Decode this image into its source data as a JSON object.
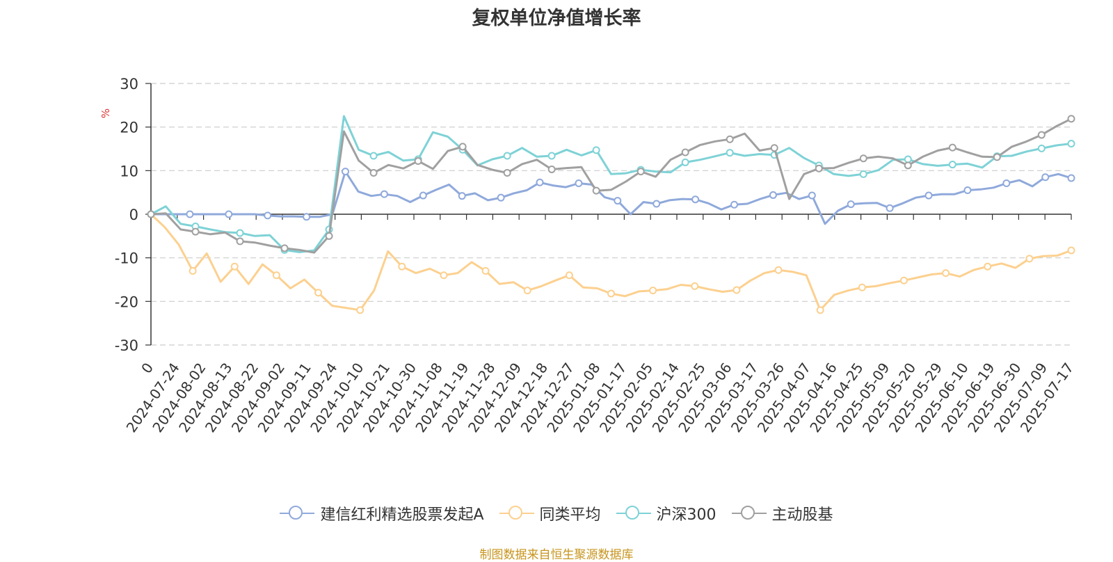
{
  "chart_data": {
    "type": "line",
    "title": "复权单位净值增长率",
    "ylabel": "%",
    "ylim": [
      -30,
      30
    ],
    "yticks": [
      -30,
      -20,
      -10,
      0,
      10,
      20,
      30
    ],
    "grid": true,
    "legend_position": "bottom",
    "source_note": "制图数据来自恒生聚源数据库",
    "x_tick_labels": [
      "0",
      "2024-07-24",
      "2024-08-02",
      "2024-08-13",
      "2024-08-22",
      "2024-09-02",
      "2024-09-11",
      "2024-09-24",
      "2024-10-10",
      "2024-10-21",
      "2024-10-30",
      "2024-11-08",
      "2024-11-19",
      "2024-11-28",
      "2024-12-09",
      "2024-12-18",
      "2024-12-27",
      "2025-01-08",
      "2025-01-17",
      "2025-02-05",
      "2025-02-14",
      "2025-02-25",
      "2025-03-06",
      "2025-03-17",
      "2025-03-26",
      "2025-04-07",
      "2025-04-16",
      "2025-04-25",
      "2025-05-09",
      "2025-05-20",
      "2025-05-29",
      "2025-06-10",
      "2025-06-19",
      "2025-06-30",
      "2025-07-09",
      "2025-07-17"
    ],
    "series": [
      {
        "name": "建信红利精选股票发起A",
        "color": "#8fa9db",
        "values": [
          0,
          0,
          0,
          0,
          0,
          0,
          0,
          0,
          0,
          -0.3,
          -0.5,
          -0.5,
          -0.6,
          -0.6,
          0,
          9.8,
          5.2,
          4.2,
          4.6,
          4.2,
          2.8,
          4.3,
          5.6,
          6.8,
          4.2,
          4.8,
          3.2,
          3.8,
          4.8,
          5.5,
          7.3,
          6.6,
          6.2,
          7.1,
          6.8,
          3.9,
          3.1,
          0,
          2.8,
          2.4,
          3.2,
          3.5,
          3.4,
          2.5,
          1.1,
          2.2,
          2.4,
          3.5,
          4.4,
          4.9,
          3.5,
          4.3,
          -2.2,
          0.8,
          2.3,
          2.5,
          2.6,
          1.4,
          2.5,
          3.8,
          4.3,
          4.6,
          4.6,
          5.5,
          5.7,
          6.1,
          7.1,
          7.8,
          6.4,
          8.5,
          9.2,
          8.3
        ]
      },
      {
        "name": "同类平均",
        "color": "#fcd08f",
        "values": [
          0,
          -3,
          -7,
          -13,
          -9,
          -15.5,
          -12,
          -16,
          -11.5,
          -14,
          -17,
          -15,
          -18,
          -21,
          -21.5,
          -22,
          -17.5,
          -8.5,
          -12,
          -13.5,
          -12.5,
          -14,
          -13.5,
          -11,
          -13,
          -16,
          -15.6,
          -17.5,
          -16.5,
          -15.2,
          -14,
          -16.8,
          -17,
          -18.2,
          -18.8,
          -17.7,
          -17.5,
          -17.2,
          -16.2,
          -16.5,
          -17.2,
          -17.8,
          -17.4,
          -15.2,
          -13.5,
          -12.8,
          -13.2,
          -14,
          -22,
          -18.5,
          -17.5,
          -16.8,
          -16.5,
          -15.8,
          -15.2,
          -14.5,
          -13.8,
          -13.5,
          -14.3,
          -12.8,
          -12,
          -11.3,
          -12.3,
          -10.2,
          -9.6,
          -9.5,
          -8.3
        ]
      },
      {
        "name": "沪深300",
        "color": "#7ed2d6",
        "values": [
          0,
          1.8,
          -2.2,
          -2.8,
          -3.5,
          -4.1,
          -4.3,
          -5,
          -4.8,
          -8.2,
          -8.7,
          -8.3,
          -3.5,
          22.5,
          14.8,
          13.4,
          14.3,
          12.3,
          12.6,
          18.8,
          17.8,
          14.8,
          11.2,
          12.6,
          13.4,
          15.2,
          13.2,
          13.4,
          14.8,
          13.5,
          14.7,
          9.2,
          9.4,
          10.2,
          9.8,
          9.6,
          11.9,
          12.5,
          13.3,
          14.1,
          13.4,
          13.8,
          13.6,
          15.2,
          12.9,
          11.2,
          9.2,
          8.8,
          9.2,
          10.1,
          12.5,
          12.6,
          11.5,
          11.1,
          11.4,
          11.6,
          10.7,
          13.3,
          13.4,
          14.4,
          15.1,
          15.8,
          16.2
        ]
      },
      {
        "name": "主动股基",
        "color": "#a0a0a0",
        "values": [
          0,
          0.2,
          -3.5,
          -4,
          -4.6,
          -4.2,
          -6.2,
          -6.5,
          -7.2,
          -7.8,
          -8.2,
          -8.8,
          -5,
          19,
          12.3,
          9.5,
          11.3,
          10.5,
          12.2,
          10.4,
          14.5,
          15.5,
          11.3,
          10.2,
          9.5,
          11.5,
          12.5,
          10.3,
          10.6,
          10.8,
          5.4,
          5.6,
          7.5,
          9.8,
          8.6,
          12.5,
          14.2,
          15.9,
          16.7,
          17.2,
          18.5,
          14.6,
          15.2,
          3.5,
          9.2,
          10.5,
          10.6,
          11.8,
          12.8,
          13.2,
          12.8,
          11.2,
          13.2,
          14.6,
          15.3,
          14.2,
          13.2,
          13.1,
          15.5,
          16.7,
          18.2,
          20.2,
          21.9
        ]
      }
    ]
  }
}
